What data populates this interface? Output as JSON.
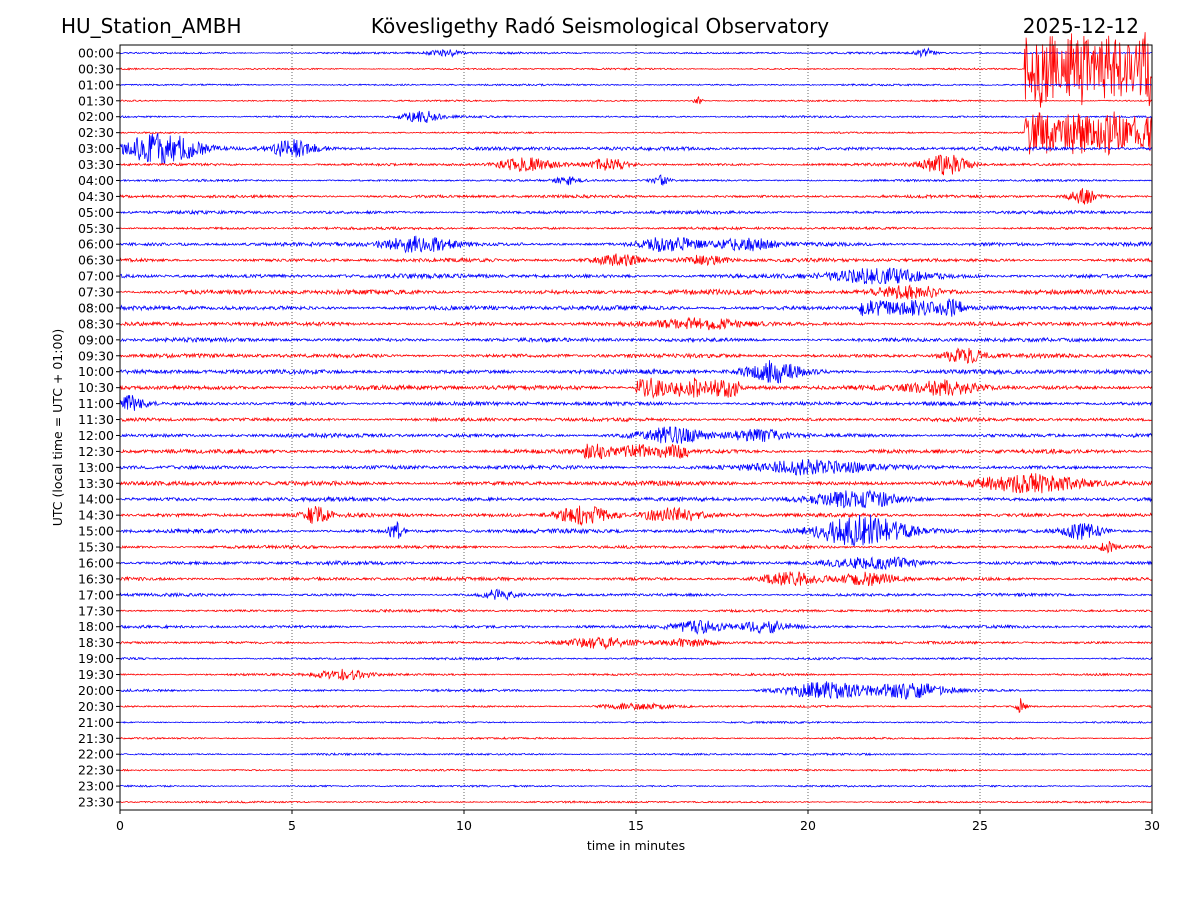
{
  "header": {
    "station": "HU_Station_AMBH",
    "title": "Kövesligethy Radó Seismological Observatory",
    "date": "2025-12-12"
  },
  "chart_data": {
    "type": "helicorder",
    "xlabel": "time in minutes",
    "ylabel": "UTC (local time = UTC + 01:00)",
    "xlim": [
      0,
      30
    ],
    "xticks": [
      0,
      5,
      10,
      15,
      20,
      25,
      30
    ],
    "grid": "vertical dotted at each x tick",
    "trace_colors": [
      "#0000ff",
      "#ff0000"
    ],
    "rows": [
      "00:00",
      "00:30",
      "01:00",
      "01:30",
      "02:00",
      "02:30",
      "03:00",
      "03:30",
      "04:00",
      "04:30",
      "05:00",
      "05:30",
      "06:00",
      "06:30",
      "07:00",
      "07:30",
      "08:00",
      "08:30",
      "09:00",
      "09:30",
      "10:00",
      "10:30",
      "11:00",
      "11:30",
      "12:00",
      "12:30",
      "13:00",
      "13:30",
      "14:00",
      "14:30",
      "15:00",
      "15:30",
      "16:00",
      "16:30",
      "17:00",
      "17:30",
      "18:00",
      "18:30",
      "19:00",
      "19:30",
      "20:00",
      "20:30",
      "21:00",
      "21:30",
      "22:00",
      "22:30",
      "23:00",
      "23:30"
    ],
    "base_amplitude": [
      1.0,
      0.8,
      0.9,
      0.8,
      1.0,
      0.8,
      1.8,
      1.4,
      1.1,
      1.5,
      1.6,
      1.3,
      2.0,
      1.8,
      2.2,
      2.4,
      2.3,
      2.0,
      2.0,
      2.0,
      2.3,
      2.4,
      2.0,
      1.8,
      2.0,
      2.1,
      2.0,
      2.2,
      2.0,
      2.0,
      2.0,
      1.6,
      1.8,
      1.8,
      1.5,
      1.3,
      1.4,
      1.3,
      1.1,
      1.1,
      1.2,
      1.0,
      0.9,
      0.9,
      1.0,
      0.9,
      0.9,
      0.9
    ],
    "events": [
      {
        "row": "00:00",
        "minute": 23.4,
        "amplitude": 5,
        "duration": 0.4
      },
      {
        "row": "00:00",
        "minute": 9.5,
        "amplitude": 3,
        "duration": 0.8
      },
      {
        "row": "01:30",
        "minute": 16.8,
        "amplitude": 4,
        "duration": 0.2
      },
      {
        "row": "02:00",
        "minute": 8.8,
        "amplitude": 7,
        "duration": 0.8
      },
      {
        "row": "00:30",
        "minute": 26.3,
        "amplitude": 40,
        "duration": 3.7
      },
      {
        "row": "02:30",
        "minute": 26.3,
        "amplitude": 22,
        "duration": 3.7
      },
      {
        "row": "03:00",
        "minute": 1.2,
        "amplitude": 14,
        "duration": 1.8
      },
      {
        "row": "03:00",
        "minute": 5.0,
        "amplitude": 9,
        "duration": 1.0
      },
      {
        "row": "03:30",
        "minute": 24.0,
        "amplitude": 10,
        "duration": 1.0
      },
      {
        "row": "03:30",
        "minute": 11.8,
        "amplitude": 6,
        "duration": 1.2
      },
      {
        "row": "03:30",
        "minute": 14.2,
        "amplitude": 6,
        "duration": 1.0
      },
      {
        "row": "04:00",
        "minute": 15.7,
        "amplitude": 5,
        "duration": 0.4
      },
      {
        "row": "04:00",
        "minute": 13.0,
        "amplitude": 4,
        "duration": 0.5
      },
      {
        "row": "04:30",
        "minute": 28.0,
        "amplitude": 8,
        "duration": 0.6
      },
      {
        "row": "06:00",
        "minute": 8.7,
        "amplitude": 8,
        "duration": 1.6
      },
      {
        "row": "06:00",
        "minute": 16.0,
        "amplitude": 7,
        "duration": 1.2
      },
      {
        "row": "06:00",
        "minute": 18.2,
        "amplitude": 6,
        "duration": 1.2
      },
      {
        "row": "06:30",
        "minute": 14.5,
        "amplitude": 6,
        "duration": 1.0
      },
      {
        "row": "06:30",
        "minute": 17.0,
        "amplitude": 5,
        "duration": 1.0
      },
      {
        "row": "07:00",
        "minute": 22.0,
        "amplitude": 7,
        "duration": 2.0
      },
      {
        "row": "07:30",
        "minute": 23.0,
        "amplitude": 6,
        "duration": 1.5
      },
      {
        "row": "08:00",
        "minute": 21.5,
        "amplitude": 7,
        "duration": 3.0
      },
      {
        "row": "08:30",
        "minute": 17.0,
        "amplitude": 5,
        "duration": 2.0
      },
      {
        "row": "09:30",
        "minute": 24.5,
        "amplitude": 7,
        "duration": 1.0
      },
      {
        "row": "10:00",
        "minute": 19.0,
        "amplitude": 10,
        "duration": 1.2
      },
      {
        "row": "10:30",
        "minute": 15.0,
        "amplitude": 9,
        "duration": 3.0
      },
      {
        "row": "10:30",
        "minute": 24.0,
        "amplitude": 7,
        "duration": 1.5
      },
      {
        "row": "11:00",
        "minute": 0.3,
        "amplitude": 7,
        "duration": 0.6
      },
      {
        "row": "12:00",
        "minute": 16.0,
        "amplitude": 7,
        "duration": 1.5
      },
      {
        "row": "12:00",
        "minute": 18.5,
        "amplitude": 6,
        "duration": 1.2
      },
      {
        "row": "12:30",
        "minute": 13.5,
        "amplitude": 6,
        "duration": 3.0
      },
      {
        "row": "13:00",
        "minute": 20.0,
        "amplitude": 7,
        "duration": 2.5
      },
      {
        "row": "13:30",
        "minute": 26.5,
        "amplitude": 8,
        "duration": 2.5
      },
      {
        "row": "14:00",
        "minute": 21.5,
        "amplitude": 8,
        "duration": 2.0
      },
      {
        "row": "14:30",
        "minute": 13.5,
        "amplitude": 9,
        "duration": 1.2
      },
      {
        "row": "14:30",
        "minute": 5.7,
        "amplitude": 8,
        "duration": 0.6
      },
      {
        "row": "14:30",
        "minute": 16.0,
        "amplitude": 7,
        "duration": 1.2
      },
      {
        "row": "15:00",
        "minute": 21.5,
        "amplitude": 16,
        "duration": 2.0
      },
      {
        "row": "15:00",
        "minute": 8.0,
        "amplitude": 9,
        "duration": 0.3
      },
      {
        "row": "15:00",
        "minute": 28.0,
        "amplitude": 8,
        "duration": 0.8
      },
      {
        "row": "15:30",
        "minute": 28.7,
        "amplitude": 5,
        "duration": 0.3
      },
      {
        "row": "16:00",
        "minute": 22.0,
        "amplitude": 6,
        "duration": 2.0
      },
      {
        "row": "16:30",
        "minute": 19.5,
        "amplitude": 7,
        "duration": 1.2
      },
      {
        "row": "16:30",
        "minute": 21.8,
        "amplitude": 6,
        "duration": 1.2
      },
      {
        "row": "17:00",
        "minute": 11.0,
        "amplitude": 5,
        "duration": 0.6
      },
      {
        "row": "18:00",
        "minute": 16.8,
        "amplitude": 6,
        "duration": 1.2
      },
      {
        "row": "18:00",
        "minute": 18.8,
        "amplitude": 6,
        "duration": 1.2
      },
      {
        "row": "18:30",
        "minute": 14.0,
        "amplitude": 5,
        "duration": 1.5
      },
      {
        "row": "18:30",
        "minute": 16.5,
        "amplitude": 4,
        "duration": 1.2
      },
      {
        "row": "19:30",
        "minute": 6.5,
        "amplitude": 5,
        "duration": 1.2
      },
      {
        "row": "20:00",
        "minute": 20.5,
        "amplitude": 8,
        "duration": 1.8
      },
      {
        "row": "20:00",
        "minute": 23.0,
        "amplitude": 8,
        "duration": 1.6
      },
      {
        "row": "20:30",
        "minute": 26.2,
        "amplitude": 8,
        "duration": 0.2
      },
      {
        "row": "20:30",
        "minute": 15.0,
        "amplitude": 3,
        "duration": 1.5
      }
    ]
  }
}
